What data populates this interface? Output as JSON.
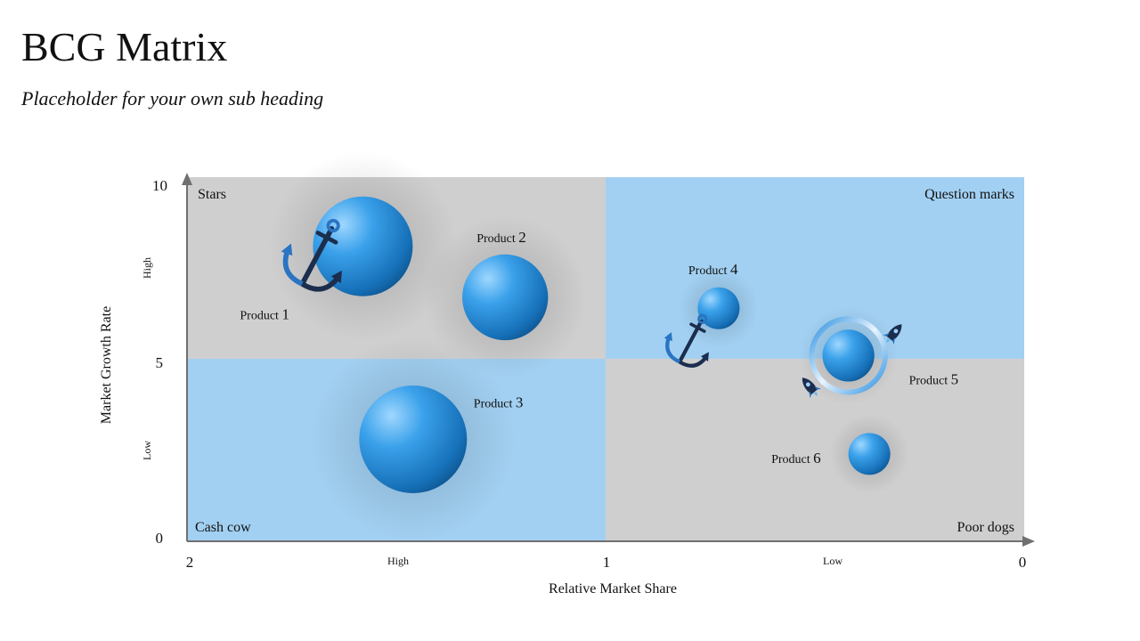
{
  "page": {
    "title": "BCG Matrix",
    "subtitle": "Placeholder for your own sub heading"
  },
  "colors": {
    "grey_quadrant": "#d0cfd0",
    "blue_quadrant": "#a2d0f2",
    "bubble_light": "#5cb8f3",
    "bubble_dark": "#0e5b9a",
    "icon_blue": "#2a74c2",
    "icon_navy": "#1b2e4e",
    "axis": "#707070"
  },
  "chart_data": {
    "type": "scatter",
    "xlabel": "Relative Market Share",
    "ylabel": "Market Growth Rate",
    "xlim": [
      2,
      0
    ],
    "ylim": [
      0,
      10
    ],
    "x_ticks": [
      "2",
      "1",
      "0"
    ],
    "y_ticks": [
      "0",
      "5",
      "10"
    ],
    "x_sublabels": [
      "High",
      "Low"
    ],
    "y_sublabels": [
      "High",
      "Low"
    ],
    "quadrants": [
      {
        "label": "Stars",
        "position": "top-left",
        "color": "grey"
      },
      {
        "label": "Question marks",
        "position": "top-right",
        "color": "blue"
      },
      {
        "label": "Cash cow",
        "position": "bottom-left",
        "color": "blue"
      },
      {
        "label": "Poor dogs",
        "position": "bottom-right",
        "color": "grey"
      }
    ],
    "points": [
      {
        "name": "Product 1",
        "x": 1.58,
        "y": 8.1,
        "size": 1.0,
        "icon": "anchor-icon"
      },
      {
        "name": "Product 2",
        "x": 1.24,
        "y": 6.7,
        "size": 0.86,
        "icon": ""
      },
      {
        "name": "Product 3",
        "x": 1.46,
        "y": 2.8,
        "size": 1.08,
        "icon": ""
      },
      {
        "name": "Product 4",
        "x": 0.73,
        "y": 6.4,
        "size": 0.42,
        "icon": "anchor-icon"
      },
      {
        "name": "Product 5",
        "x": 0.42,
        "y": 5.1,
        "size": 0.52,
        "icon": "ring-rockets"
      },
      {
        "name": "Product 6",
        "x": 0.37,
        "y": 2.4,
        "size": 0.42,
        "icon": ""
      }
    ]
  }
}
